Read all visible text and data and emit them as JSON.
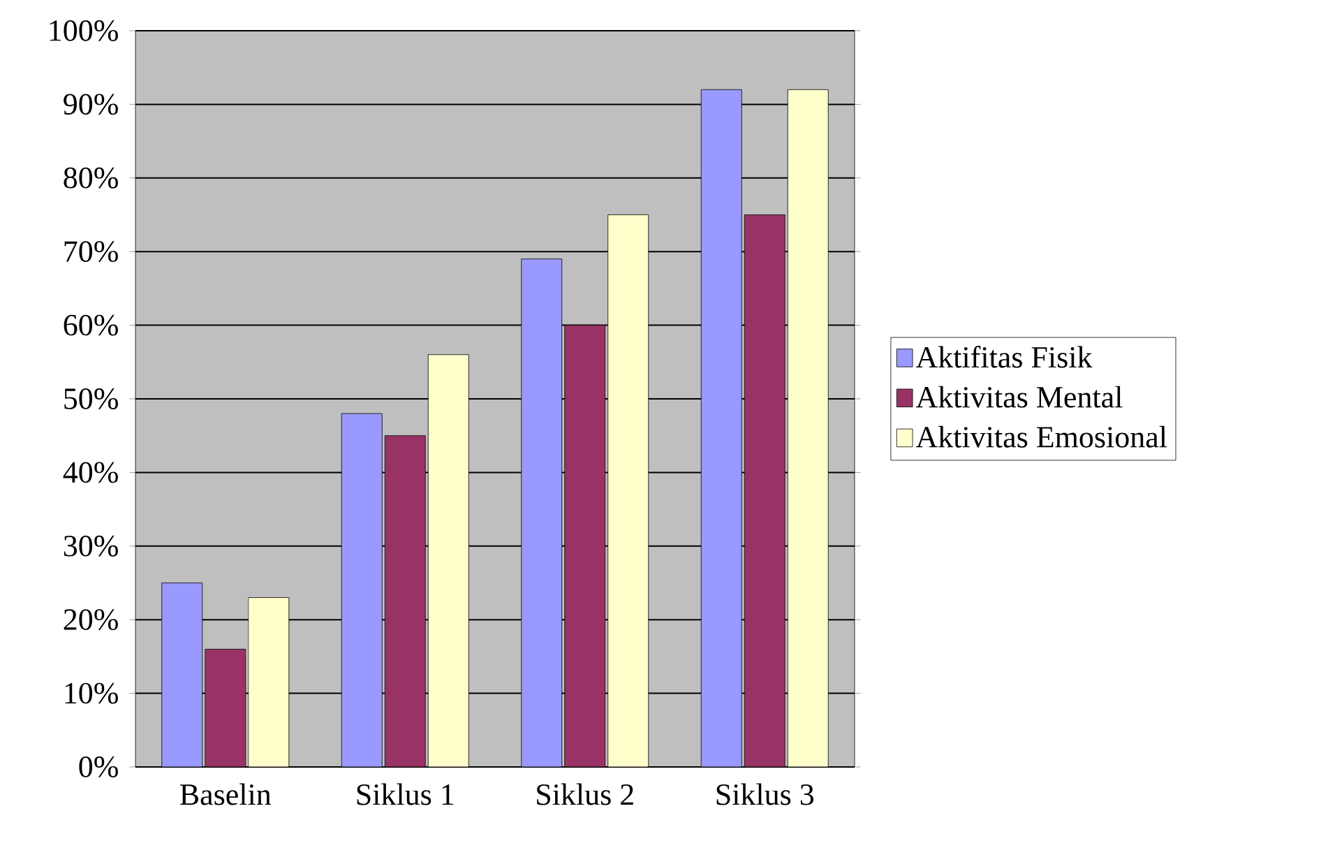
{
  "chart_data": {
    "type": "bar",
    "categories": [
      "Baselin",
      "Siklus 1",
      "Siklus 2",
      "Siklus 3"
    ],
    "series": [
      {
        "name": "Aktifitas Fisik",
        "color": "#9999ff",
        "values": [
          25,
          48,
          69,
          92
        ]
      },
      {
        "name": "Aktivitas Mental",
        "color": "#993366",
        "values": [
          16,
          45,
          60,
          75
        ]
      },
      {
        "name": "Aktivitas Emosional",
        "color": "#ffffcc",
        "values": [
          23,
          56,
          75,
          92
        ]
      }
    ],
    "ylim": [
      0,
      100
    ],
    "yticks": [
      {
        "value": 0,
        "label": "0%"
      },
      {
        "value": 10,
        "label": "10%"
      },
      {
        "value": 20,
        "label": "20%"
      },
      {
        "value": 30,
        "label": "30%"
      },
      {
        "value": 40,
        "label": "40%"
      },
      {
        "value": 50,
        "label": "50%"
      },
      {
        "value": 60,
        "label": "60%"
      },
      {
        "value": 70,
        "label": "70%"
      },
      {
        "value": 80,
        "label": "80%"
      },
      {
        "value": 90,
        "label": "90%"
      },
      {
        "value": 100,
        "label": "100%"
      }
    ],
    "grid": "y",
    "legend": "right"
  }
}
